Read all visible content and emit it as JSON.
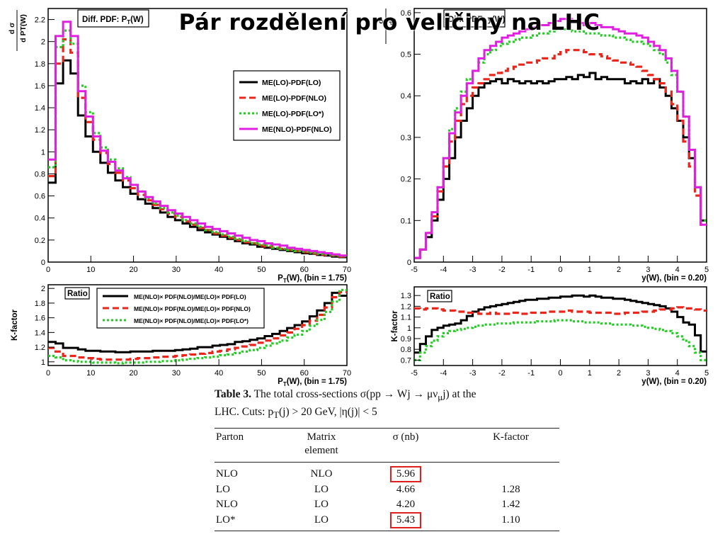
{
  "slide_title": "Pár rozdělení pro veličiny na LHC",
  "chart_data": [
    {
      "id": "pt_distribution",
      "type": "line",
      "title": "Diff. PDF:  P_T(W)",
      "xlabel": "P_T(W), (bin =  1.75)",
      "ylabel": "dσ / d P_T(W)",
      "xlim": [
        0,
        70
      ],
      "ylim": [
        0,
        2.3
      ],
      "x_ticks": [
        0,
        10,
        20,
        30,
        40,
        50,
        60,
        70
      ],
      "y_ticks": [
        0,
        0.2,
        0.4,
        0.6,
        0.8,
        1,
        1.2,
        1.4,
        1.6,
        1.8,
        2,
        2.2
      ],
      "legend_position": "right",
      "x_bin_edges_start": 0,
      "bin_width": 1.75,
      "series": [
        {
          "name": "ME(LO)-PDF(LO)",
          "color": "#000000",
          "style": "solid",
          "values": [
            0.72,
            1.62,
            1.83,
            1.71,
            1.33,
            1.14,
            1.0,
            0.9,
            0.81,
            0.74,
            0.68,
            0.62,
            0.57,
            0.53,
            0.49,
            0.45,
            0.41,
            0.38,
            0.35,
            0.32,
            0.29,
            0.27,
            0.25,
            0.23,
            0.21,
            0.19,
            0.17,
            0.16,
            0.14,
            0.13,
            0.12,
            0.11,
            0.1,
            0.09,
            0.08,
            0.075,
            0.065,
            0.06,
            0.05,
            0.045
          ]
        },
        {
          "name": "ME(LO)-PDF(NLO)",
          "color": "#e8261c",
          "style": "dashed",
          "values": [
            0.78,
            1.8,
            2.02,
            1.9,
            1.49,
            1.27,
            1.11,
            0.99,
            0.89,
            0.81,
            0.74,
            0.67,
            0.61,
            0.56,
            0.52,
            0.48,
            0.44,
            0.41,
            0.37,
            0.34,
            0.31,
            0.29,
            0.26,
            0.24,
            0.22,
            0.2,
            0.18,
            0.17,
            0.15,
            0.14,
            0.13,
            0.12,
            0.11,
            0.1,
            0.09,
            0.08,
            0.07,
            0.065,
            0.06,
            0.05
          ]
        },
        {
          "name": "ME(LO)-PDF(LO*)",
          "color": "#22cc22",
          "style": "dotted",
          "values": [
            0.86,
            1.95,
            2.1,
            1.98,
            1.6,
            1.36,
            1.17,
            1.04,
            0.93,
            0.85,
            0.77,
            0.7,
            0.64,
            0.58,
            0.53,
            0.49,
            0.45,
            0.42,
            0.38,
            0.35,
            0.32,
            0.29,
            0.27,
            0.25,
            0.23,
            0.21,
            0.19,
            0.17,
            0.16,
            0.15,
            0.13,
            0.12,
            0.11,
            0.1,
            0.095,
            0.085,
            0.075,
            0.07,
            0.06,
            0.055
          ]
        },
        {
          "name": "ME(NLO)-PDF(NLO)",
          "color": "#e020e0",
          "style": "solid",
          "values": [
            0.93,
            2.05,
            2.18,
            2.05,
            1.55,
            1.32,
            1.14,
            1.01,
            0.91,
            0.83,
            0.76,
            0.7,
            0.64,
            0.59,
            0.55,
            0.51,
            0.47,
            0.44,
            0.41,
            0.38,
            0.35,
            0.32,
            0.3,
            0.28,
            0.26,
            0.24,
            0.22,
            0.2,
            0.19,
            0.17,
            0.16,
            0.15,
            0.13,
            0.12,
            0.11,
            0.1,
            0.09,
            0.08,
            0.07,
            0.06
          ]
        }
      ]
    },
    {
      "id": "y_distribution",
      "type": "line",
      "title": "Diff. PDF:  y(W)",
      "xlabel": "y(W), (bin =  0.20)",
      "ylabel": "dσ / dy",
      "xlim": [
        -5,
        5
      ],
      "ylim": [
        0,
        0.61
      ],
      "x_ticks": [
        -5,
        -4,
        -3,
        -2,
        -1,
        0,
        1,
        2,
        3,
        4,
        5
      ],
      "y_ticks": [
        0,
        0.1,
        0.2,
        0.3,
        0.4,
        0.5,
        0.6
      ],
      "legend_position": "none",
      "x_bin_edges_start": -5,
      "bin_width": 0.2,
      "series": [
        {
          "name": "ME(LO)-PDF(LO)",
          "color": "#000000",
          "style": "solid",
          "values": [
            0.01,
            0.03,
            0.06,
            0.1,
            0.15,
            0.2,
            0.25,
            0.3,
            0.34,
            0.37,
            0.4,
            0.42,
            0.43,
            0.435,
            0.44,
            0.43,
            0.44,
            0.435,
            0.43,
            0.435,
            0.43,
            0.435,
            0.43,
            0.435,
            0.44,
            0.44,
            0.445,
            0.44,
            0.45,
            0.445,
            0.455,
            0.44,
            0.445,
            0.44,
            0.44,
            0.44,
            0.43,
            0.435,
            0.43,
            0.44,
            0.43,
            0.44,
            0.42,
            0.4,
            0.37,
            0.34,
            0.3,
            0.25,
            0.18,
            0.1
          ]
        },
        {
          "name": "ME(LO)-PDF(NLO)",
          "color": "#e8261c",
          "style": "dashed",
          "values": [
            0.01,
            0.03,
            0.07,
            0.11,
            0.17,
            0.23,
            0.29,
            0.34,
            0.38,
            0.4,
            0.42,
            0.43,
            0.44,
            0.45,
            0.455,
            0.46,
            0.465,
            0.47,
            0.475,
            0.48,
            0.48,
            0.485,
            0.49,
            0.49,
            0.5,
            0.505,
            0.51,
            0.51,
            0.51,
            0.505,
            0.5,
            0.5,
            0.495,
            0.49,
            0.485,
            0.48,
            0.48,
            0.475,
            0.47,
            0.46,
            0.45,
            0.44,
            0.43,
            0.41,
            0.38,
            0.34,
            0.29,
            0.23,
            0.16,
            0.09
          ]
        },
        {
          "name": "ME(LO)-PDF(LO*)",
          "color": "#22cc22",
          "style": "dotted",
          "values": [
            0.01,
            0.03,
            0.07,
            0.12,
            0.18,
            0.25,
            0.32,
            0.37,
            0.41,
            0.44,
            0.46,
            0.48,
            0.5,
            0.51,
            0.52,
            0.525,
            0.53,
            0.535,
            0.54,
            0.54,
            0.545,
            0.55,
            0.55,
            0.555,
            0.56,
            0.56,
            0.56,
            0.555,
            0.555,
            0.55,
            0.55,
            0.55,
            0.545,
            0.545,
            0.54,
            0.54,
            0.535,
            0.53,
            0.53,
            0.525,
            0.52,
            0.51,
            0.5,
            0.48,
            0.45,
            0.41,
            0.35,
            0.27,
            0.18,
            0.1
          ]
        },
        {
          "name": "ME(NLO)-PDF(NLO)",
          "color": "#e020e0",
          "style": "solid",
          "values": [
            0.01,
            0.03,
            0.07,
            0.12,
            0.18,
            0.25,
            0.31,
            0.36,
            0.4,
            0.43,
            0.46,
            0.49,
            0.51,
            0.52,
            0.53,
            0.54,
            0.545,
            0.55,
            0.555,
            0.56,
            0.565,
            0.57,
            0.57,
            0.575,
            0.58,
            0.585,
            0.585,
            0.58,
            0.575,
            0.57,
            0.575,
            0.57,
            0.565,
            0.565,
            0.56,
            0.555,
            0.55,
            0.55,
            0.545,
            0.54,
            0.53,
            0.52,
            0.51,
            0.49,
            0.46,
            0.41,
            0.35,
            0.27,
            0.18,
            0.09
          ]
        }
      ]
    },
    {
      "id": "pt_ratio",
      "type": "line",
      "title": "Ratio",
      "xlabel": "P_T(W), (bin =  1.75)",
      "ylabel": "K-factor",
      "xlim": [
        0,
        70
      ],
      "ylim": [
        0.95,
        2.05
      ],
      "x_ticks": [
        0,
        10,
        20,
        30,
        40,
        50,
        60,
        70
      ],
      "y_ticks": [
        1,
        1.2,
        1.4,
        1.6,
        1.8,
        2
      ],
      "legend_position": "top",
      "x_bin_edges_start": 0,
      "bin_width": 1.75,
      "series": [
        {
          "name": "ME(NLO)× PDF(NLO)/ME(LO)× PDF(LO)",
          "color": "#000000",
          "style": "solid",
          "values": [
            1.27,
            1.25,
            1.19,
            1.19,
            1.17,
            1.15,
            1.15,
            1.14,
            1.14,
            1.13,
            1.13,
            1.14,
            1.14,
            1.14,
            1.15,
            1.15,
            1.15,
            1.16,
            1.17,
            1.18,
            1.2,
            1.2,
            1.22,
            1.23,
            1.24,
            1.27,
            1.28,
            1.3,
            1.32,
            1.35,
            1.38,
            1.42,
            1.46,
            1.5,
            1.55,
            1.62,
            1.7,
            1.8,
            1.94,
            1.9
          ]
        },
        {
          "name": "ME(NLO)× PDF(NLO)/ME(LO)× PDF(NLO)",
          "color": "#e8261c",
          "style": "dashed",
          "values": [
            1.19,
            1.14,
            1.08,
            1.08,
            1.06,
            1.05,
            1.04,
            1.03,
            1.03,
            1.03,
            1.03,
            1.04,
            1.05,
            1.05,
            1.06,
            1.07,
            1.07,
            1.08,
            1.09,
            1.1,
            1.11,
            1.12,
            1.14,
            1.15,
            1.17,
            1.19,
            1.21,
            1.23,
            1.26,
            1.29,
            1.32,
            1.36,
            1.4,
            1.45,
            1.5,
            1.56,
            1.64,
            1.74,
            1.88,
            1.95
          ]
        },
        {
          "name": "ME(NLO)× PDF(NLO)/ME(LO)× PDF(LO*)",
          "color": "#22cc22",
          "style": "dotted",
          "values": [
            1.08,
            1.06,
            1.02,
            1.01,
            1.0,
            1.0,
            0.99,
            0.99,
            0.99,
            0.98,
            0.99,
            0.99,
            0.99,
            1.0,
            1.0,
            1.01,
            1.01,
            1.02,
            1.03,
            1.04,
            1.05,
            1.06,
            1.07,
            1.09,
            1.1,
            1.12,
            1.14,
            1.16,
            1.19,
            1.22,
            1.25,
            1.29,
            1.33,
            1.37,
            1.42,
            1.49,
            1.57,
            1.68,
            1.82,
            1.98
          ]
        }
      ]
    },
    {
      "id": "y_ratio",
      "type": "line",
      "title": "Ratio",
      "xlabel": "y(W), (bin =  0.20)",
      "ylabel": "K-factor",
      "xlim": [
        -5,
        5
      ],
      "ylim": [
        0.65,
        1.38
      ],
      "x_ticks": [
        -5,
        -4,
        -3,
        -2,
        -1,
        0,
        1,
        2,
        3,
        4,
        5
      ],
      "y_ticks": [
        0.7,
        0.8,
        0.9,
        1,
        1.1,
        1.2,
        1.3
      ],
      "legend_position": "none",
      "x_bin_edges_start": -5,
      "bin_width": 0.2,
      "series": [
        {
          "name": "ME(NLO)× PDF(NLO)/ME(LO)× PDF(LO)",
          "color": "#000000",
          "style": "solid",
          "values": [
            0.77,
            0.85,
            0.92,
            0.98,
            1.0,
            1.02,
            1.03,
            1.04,
            1.07,
            1.11,
            1.15,
            1.17,
            1.19,
            1.2,
            1.21,
            1.22,
            1.23,
            1.24,
            1.25,
            1.26,
            1.26,
            1.27,
            1.27,
            1.28,
            1.28,
            1.29,
            1.29,
            1.3,
            1.3,
            1.29,
            1.3,
            1.29,
            1.28,
            1.28,
            1.27,
            1.27,
            1.26,
            1.25,
            1.24,
            1.23,
            1.22,
            1.21,
            1.2,
            1.18,
            1.15,
            1.1,
            1.05,
            1.03,
            0.93,
            0.78
          ]
        },
        {
          "name": "ME(NLO)× PDF(NLO)/ME(LO)× PDF(NLO)",
          "color": "#e8261c",
          "style": "dashed",
          "values": [
            1.18,
            1.17,
            1.18,
            1.18,
            1.17,
            1.16,
            1.16,
            1.15,
            1.15,
            1.14,
            1.14,
            1.13,
            1.13,
            1.14,
            1.13,
            1.13,
            1.13,
            1.14,
            1.13,
            1.13,
            1.14,
            1.14,
            1.14,
            1.15,
            1.15,
            1.15,
            1.16,
            1.15,
            1.15,
            1.15,
            1.14,
            1.14,
            1.14,
            1.14,
            1.13,
            1.13,
            1.14,
            1.14,
            1.14,
            1.15,
            1.15,
            1.16,
            1.17,
            1.17,
            1.18,
            1.19,
            1.18,
            1.18,
            1.17,
            1.16
          ]
        },
        {
          "name": "ME(NLO)× PDF(NLO)/ME(LO)× PDF(LO*)",
          "color": "#22cc22",
          "style": "dotted",
          "values": [
            0.7,
            0.77,
            0.83,
            0.88,
            0.92,
            0.95,
            0.97,
            0.98,
            0.99,
            1.0,
            1.01,
            1.02,
            1.03,
            1.03,
            1.04,
            1.04,
            1.04,
            1.05,
            1.05,
            1.05,
            1.05,
            1.06,
            1.06,
            1.06,
            1.07,
            1.07,
            1.07,
            1.06,
            1.06,
            1.05,
            1.05,
            1.05,
            1.04,
            1.04,
            1.03,
            1.03,
            1.03,
            1.02,
            1.02,
            1.01,
            1.0,
            0.99,
            0.98,
            0.97,
            0.95,
            0.92,
            0.88,
            0.83,
            0.77,
            0.7
          ]
        }
      ]
    }
  ],
  "table": {
    "caption_label": "Table 3.",
    "caption_line1": " The total cross-sections σ(pp → Wj → μν",
    "caption_sub_mu": "μ",
    "caption_line1_end": "j) at the",
    "caption_line2_a": "LHC. Cuts: p",
    "caption_sub_T": "T",
    "caption_line2_b": "(j) > 20 GeV, |η(j)| < 5",
    "headers": [
      "Parton",
      "Matrix element",
      "σ (nb)",
      "K-factor"
    ],
    "rows": [
      {
        "parton": "NLO",
        "matrix": "NLO",
        "sigma": "5.96",
        "k": "",
        "highlight": true
      },
      {
        "parton": "LO",
        "matrix": "LO",
        "sigma": "4.66",
        "k": "1.28",
        "highlight": false
      },
      {
        "parton": "NLO",
        "matrix": "LO",
        "sigma": "4.20",
        "k": "1.42",
        "highlight": false
      },
      {
        "parton": "LO*",
        "matrix": "LO",
        "sigma": "5.43",
        "k": "1.10",
        "highlight": true
      }
    ]
  }
}
